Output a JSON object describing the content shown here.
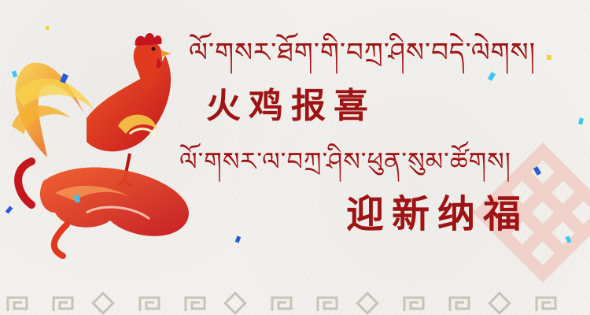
{
  "colors": {
    "background": "#f3f1ed",
    "text_red": "#9e1414",
    "rooster_red": "#e03a1e",
    "rooster_orange": "#f29a2a",
    "rooster_yellow": "#f7d24b",
    "border_grey": "#c9c2b6",
    "knot_pink": "#f0c9c0",
    "confetti_blue": "#2a5bd7",
    "confetti_cyan": "#36c8f0",
    "confetti_yellow": "#f2d23a"
  },
  "banner": {
    "tibetan_line_1": "ལོ་གསར་ཐོག་གི་བཀྲ་ཤིས་བདེ་ལེགས།",
    "chinese_line_1": "火鸡报喜",
    "tibetan_line_2": "ལོ་གསར་ལ་བཀྲ་ཤིས་ཕུན་སུམ་ཚོགས།",
    "chinese_line_2": "迎新纳福"
  },
  "icons": {
    "rooster": "rooster-illustration",
    "endless_knot": "endless-knot-icon",
    "fret_pattern": "key-fret-pattern"
  }
}
